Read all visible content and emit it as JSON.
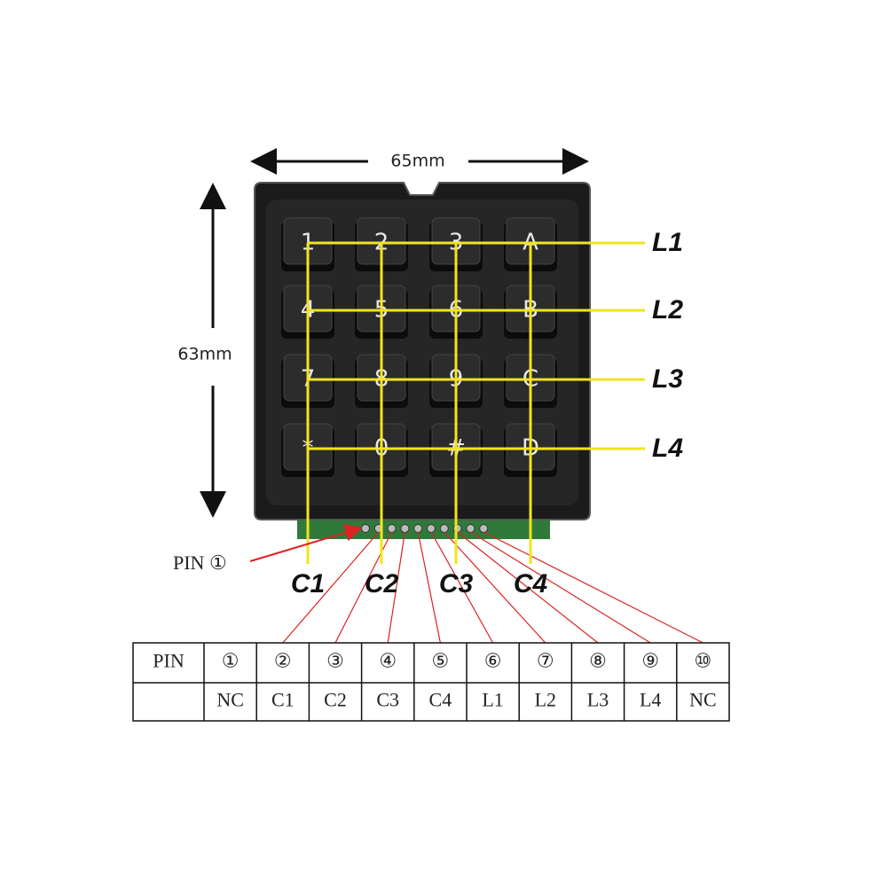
{
  "dimensions": {
    "width": "65mm",
    "height": "63mm"
  },
  "keys": [
    "1",
    "2",
    "3",
    "A",
    "4",
    "5",
    "6",
    "B",
    "7",
    "8",
    "9",
    "C",
    "*",
    "0",
    "#",
    "D"
  ],
  "rows": [
    "L1",
    "L2",
    "L3",
    "L4"
  ],
  "columns": [
    "C1",
    "C2",
    "C3",
    "C4"
  ],
  "pin_label": "PIN ①",
  "table": {
    "header": [
      "PIN",
      "①",
      "②",
      "③",
      "④",
      "⑤",
      "⑥",
      "⑦",
      "⑧",
      "⑨",
      "⑩"
    ],
    "values": [
      "NC",
      "C1",
      "C2",
      "C3",
      "C4",
      "L1",
      "L2",
      "L3",
      "L4",
      "NC"
    ]
  }
}
